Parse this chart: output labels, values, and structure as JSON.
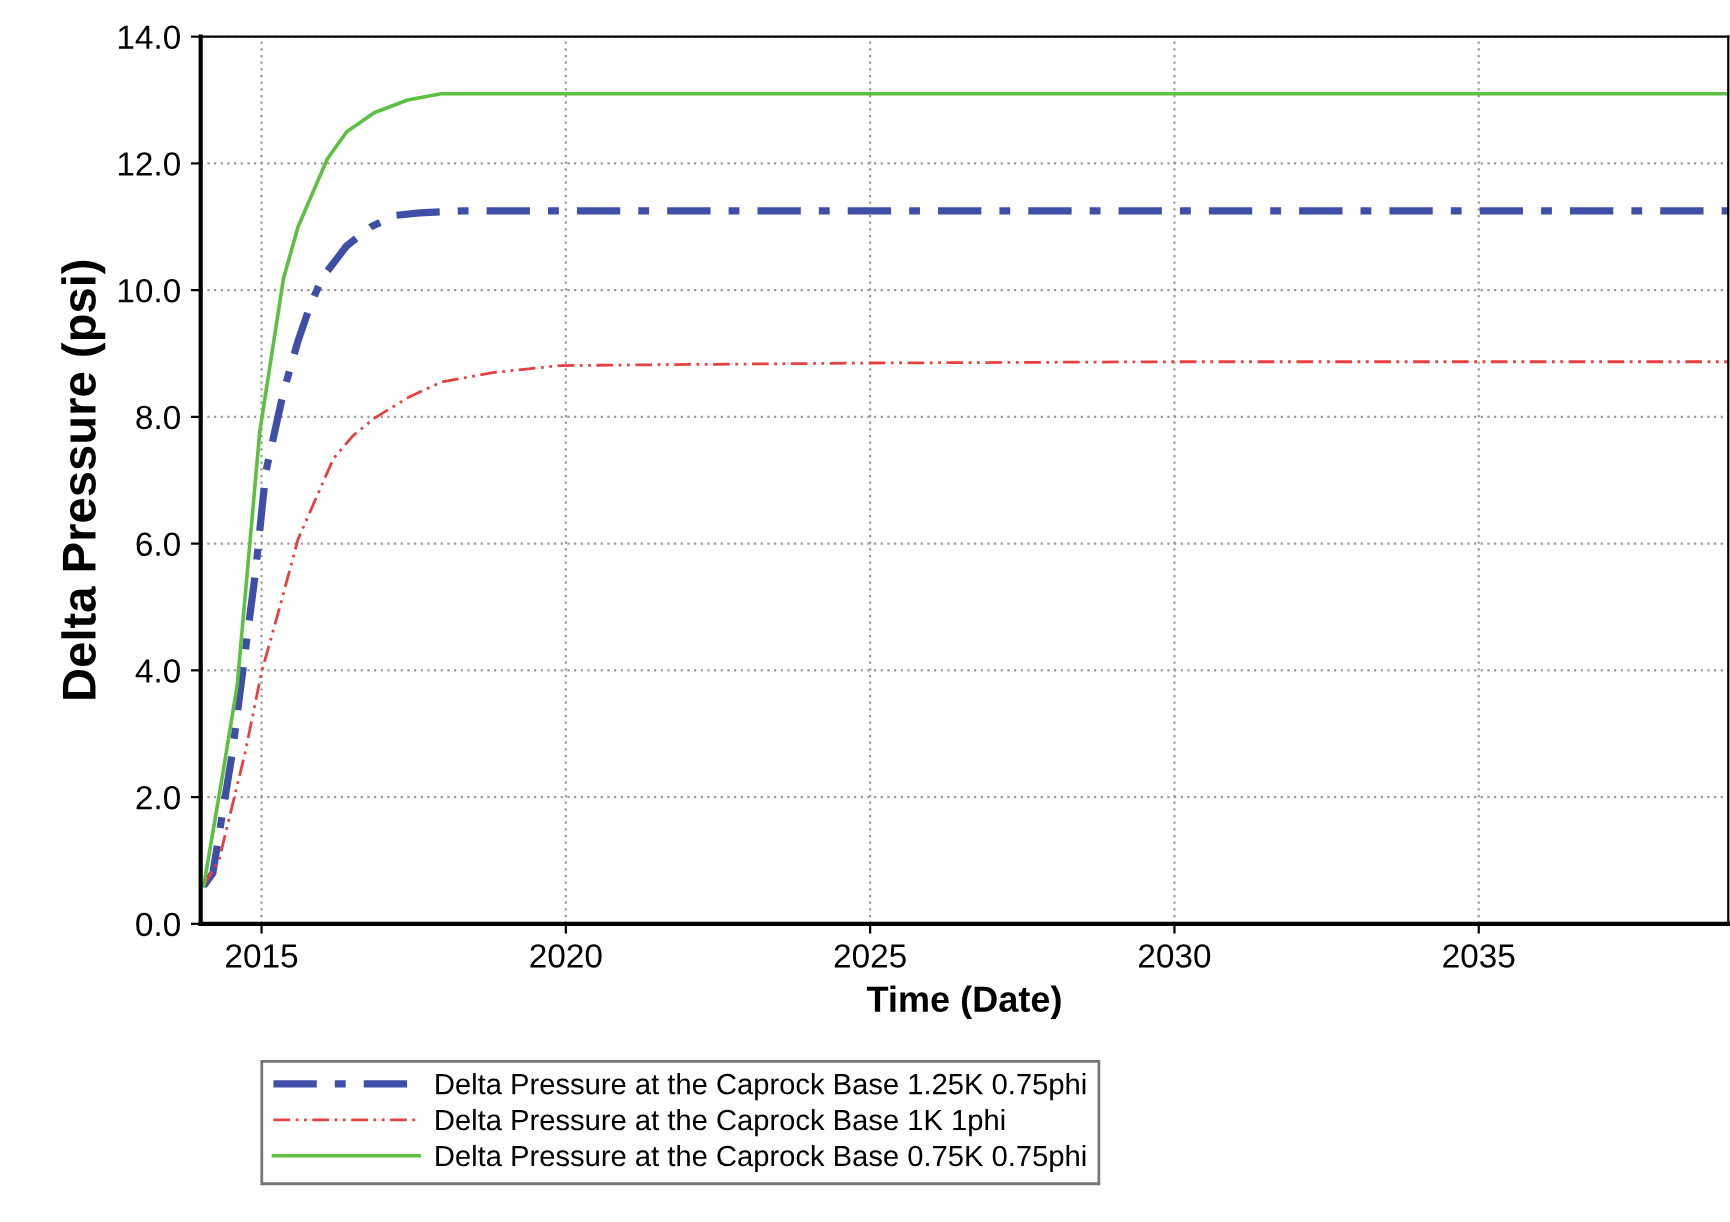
{
  "chart_data": {
    "type": "line",
    "xlabel": "Time (Date)",
    "ylabel": "Delta Pressure (psi)",
    "xlim": [
      2014,
      2039.1
    ],
    "xticks": [
      2015,
      2020,
      2025,
      2030,
      2035
    ],
    "ylim": [
      0,
      14
    ],
    "yticks": [
      {
        "value": 0,
        "label": "0.0"
      },
      {
        "value": 2,
        "label": "2.0"
      },
      {
        "value": 4,
        "label": "4.0"
      },
      {
        "value": 6,
        "label": "6.0"
      },
      {
        "value": 8,
        "label": "8.0"
      },
      {
        "value": 10,
        "label": "10.0"
      },
      {
        "value": 12,
        "label": "12.0"
      },
      {
        "value": 14,
        "label": "14.0"
      }
    ],
    "grid": true,
    "legend": "bottom",
    "marker": "none",
    "series": [
      {
        "name": "Delta Pressure at the Caprock Base 1.25K 0.75phi",
        "color": "#3f4fa8",
        "line_style": "dashdot",
        "x": [
          2014.05,
          2014.2,
          2014.52,
          2014.9,
          2015.07,
          2015.36,
          2015.6,
          2015.8,
          2016.0,
          2016.4,
          2016.8,
          2017.2,
          2017.6,
          2018.3,
          2025,
          2030,
          2039.1
        ],
        "values": [
          0.6,
          0.8,
          2.7,
          5.55,
          7.13,
          8.39,
          9.2,
          9.76,
          10.2,
          10.7,
          11.0,
          11.18,
          11.22,
          11.25,
          11.25,
          11.25,
          11.25
        ]
      },
      {
        "name": "Delta Pressure at the Caprock Base 1K 1phi",
        "color": "#e84040",
        "line_style": "dashdotdot",
        "x": [
          2014.05,
          2014.3,
          2014.73,
          2015.0,
          2015.3,
          2015.6,
          2016.18,
          2016.5,
          2016.84,
          2017.4,
          2017.95,
          2018.8,
          2019.92,
          2025,
          2030,
          2039.1
        ],
        "values": [
          0.6,
          1.0,
          2.7,
          3.97,
          5.0,
          6.07,
          7.34,
          7.7,
          7.97,
          8.3,
          8.55,
          8.7,
          8.81,
          8.85,
          8.87,
          8.87
        ]
      },
      {
        "name": "Delta Pressure at the Caprock Base 0.75K 0.75phi",
        "color": "#5cc040",
        "line_style": "solid",
        "x": [
          2014.05,
          2014.33,
          2014.6,
          2014.97,
          2015.36,
          2015.6,
          2016.08,
          2016.4,
          2016.85,
          2017.4,
          2017.95,
          2025,
          2030,
          2039.1
        ],
        "values": [
          0.6,
          2.18,
          3.76,
          7.76,
          10.18,
          11.0,
          12.07,
          12.5,
          12.8,
          13.0,
          13.1,
          13.1,
          13.1,
          13.1
        ]
      }
    ]
  }
}
